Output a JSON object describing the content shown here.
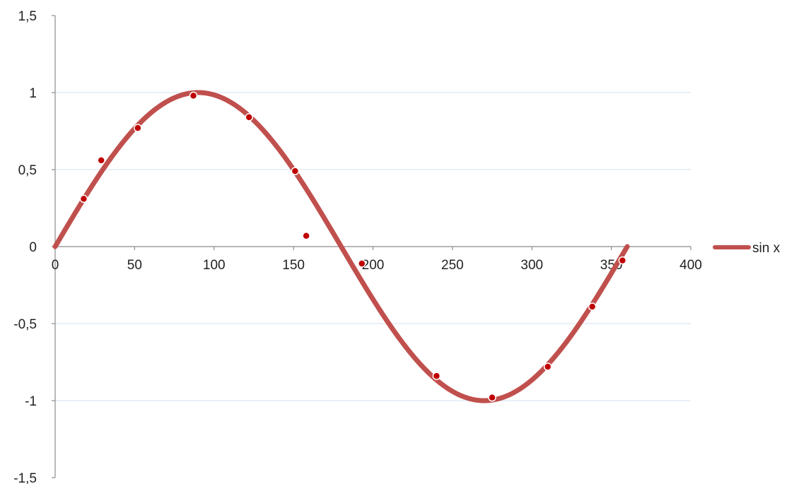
{
  "chart_data": {
    "type": "line",
    "xlim": [
      0,
      400
    ],
    "ylim": [
      -1.5,
      1.5
    ],
    "x_ticks": [
      0,
      50,
      100,
      150,
      200,
      250,
      300,
      350,
      400
    ],
    "x_tick_labels": [
      "0",
      "50",
      "100",
      "150",
      "200",
      "250",
      "300",
      "350",
      "400"
    ],
    "y_ticks": [
      1.5,
      1,
      0.5,
      0,
      -0.5,
      -1,
      -1.5
    ],
    "y_tick_labels": [
      "1,5",
      "1",
      "0,5",
      "0",
      "-0,5",
      "-1",
      "-1,5"
    ],
    "grid": "horizontal",
    "legend_position": "right",
    "series": [
      {
        "name": "sin x",
        "kind": "line",
        "color": "#c0504d",
        "function": "sin(x degrees)",
        "x_range": [
          0,
          360
        ]
      },
      {
        "kind": "scatter",
        "color": "#c00000",
        "points": [
          {
            "x": 18,
            "y": 0.31
          },
          {
            "x": 29,
            "y": 0.56
          },
          {
            "x": 52,
            "y": 0.77
          },
          {
            "x": 87,
            "y": 0.98
          },
          {
            "x": 122,
            "y": 0.84
          },
          {
            "x": 151,
            "y": 0.49
          },
          {
            "x": 158,
            "y": 0.07
          },
          {
            "x": 193,
            "y": -0.11
          },
          {
            "x": 240,
            "y": -0.84
          },
          {
            "x": 275,
            "y": -0.98
          },
          {
            "x": 310,
            "y": -0.78
          },
          {
            "x": 338,
            "y": -0.39
          },
          {
            "x": 357,
            "y": -0.09
          }
        ]
      }
    ]
  }
}
